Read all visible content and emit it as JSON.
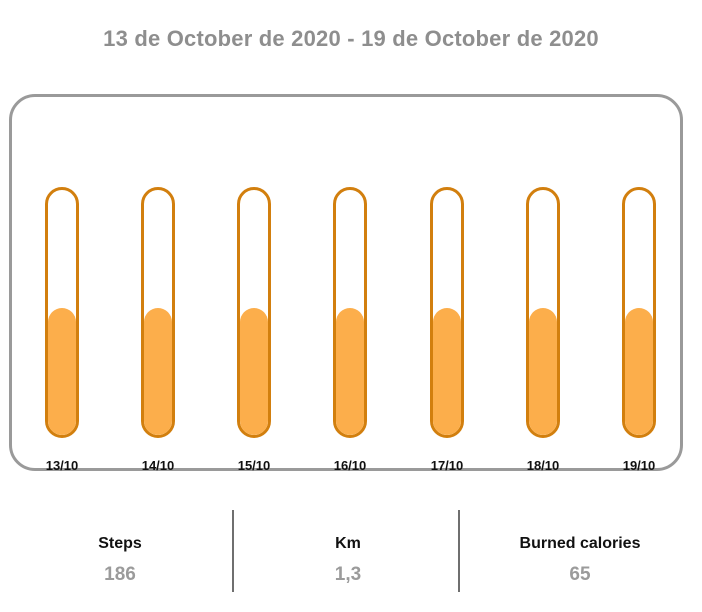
{
  "header": {
    "date_range": "13 de October de 2020 - 19 de October de 2020"
  },
  "chart": {
    "colors": {
      "track_border": "#d27f0e",
      "fill": "#fcae4b",
      "card_border": "#9a9a9a"
    },
    "days": [
      {
        "label": "13/10",
        "fill_fraction": 0.52
      },
      {
        "label": "14/10",
        "fill_fraction": 0.52
      },
      {
        "label": "15/10",
        "fill_fraction": 0.52
      },
      {
        "label": "16/10",
        "fill_fraction": 0.52
      },
      {
        "label": "17/10",
        "fill_fraction": 0.52
      },
      {
        "label": "18/10",
        "fill_fraction": 0.52
      },
      {
        "label": "19/10",
        "fill_fraction": 0.52
      }
    ]
  },
  "stats": [
    {
      "label": "Steps",
      "value": "186"
    },
    {
      "label": "Km",
      "value": "1,3"
    },
    {
      "label": "Burned calories",
      "value": "65"
    }
  ]
}
